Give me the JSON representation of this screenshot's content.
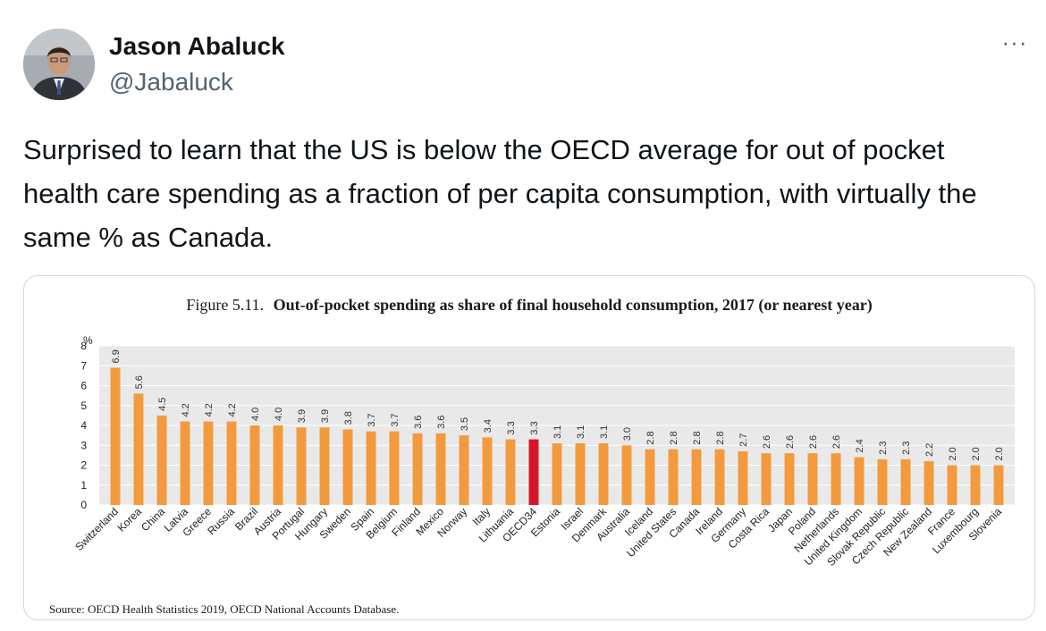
{
  "tweet": {
    "author_name": "Jason Abaluck",
    "handle": "@Jabaluck",
    "more_label": "···",
    "text": "Surprised to learn that the US is below the OECD average for out of pocket health care spending as a fraction of per capita consumption, with virtually the same % as Canada."
  },
  "colors": {
    "bar": "#f39a3e",
    "highlight": "#d7142a",
    "plot_bg": "#e9e9e9",
    "grid": "#ffffff"
  },
  "chart_data": {
    "type": "bar",
    "title_prefix": "Figure 5.11.",
    "title": "Out-of-pocket spending as share of final household consumption, 2017 (or nearest year)",
    "ylabel": "%",
    "ylim": [
      0,
      8
    ],
    "yticks": [
      0,
      1,
      2,
      3,
      4,
      5,
      6,
      7,
      8
    ],
    "categories": [
      "Switzerland",
      "Korea",
      "China",
      "Latvia",
      "Greece",
      "Russia",
      "Brazil",
      "Austria",
      "Portugal",
      "Hungary",
      "Sweden",
      "Spain",
      "Belgium",
      "Finland",
      "Mexico",
      "Norway",
      "Italy",
      "Lithuania",
      "OECD34",
      "Estonia",
      "Israel",
      "Denmark",
      "Australia",
      "Iceland",
      "United States",
      "Canada",
      "Ireland",
      "Germany",
      "Costa Rica",
      "Japan",
      "Poland",
      "Netherlands",
      "United Kingdom",
      "Slovak Republic",
      "Czech Republic",
      "New Zealand",
      "France",
      "Luxembourg",
      "Slovenia"
    ],
    "values": [
      6.9,
      5.6,
      4.5,
      4.2,
      4.2,
      4.2,
      4.0,
      4.0,
      3.9,
      3.9,
      3.8,
      3.7,
      3.7,
      3.6,
      3.6,
      3.5,
      3.4,
      3.3,
      3.3,
      3.1,
      3.1,
      3.1,
      3.0,
      2.8,
      2.8,
      2.8,
      2.8,
      2.7,
      2.6,
      2.6,
      2.6,
      2.6,
      2.4,
      2.3,
      2.3,
      2.2,
      2.0,
      2.0,
      2.0
    ],
    "value_labels": [
      "6.9",
      "5.6",
      "4.5",
      "4.2",
      "4.2",
      "4.2",
      "4.0",
      "4.0",
      "3.9",
      "3.9",
      "3.8",
      "3.7",
      "3.7",
      "3.6",
      "3.6",
      "3.5",
      "3.4",
      "3.3",
      "3.3",
      "3.1",
      "3.1",
      "3.1",
      "3.0",
      "2.8",
      "2.8",
      "2.8",
      "2.8",
      "2.7",
      "2.6",
      "2.6",
      "2.6",
      "2.6",
      "2.4",
      "2.3",
      "2.3",
      "2.2",
      "2.0",
      "2.0",
      "2.0"
    ],
    "highlight_category": "OECD34",
    "source": "Source: OECD Health Statistics 2019, OECD National Accounts Database."
  }
}
